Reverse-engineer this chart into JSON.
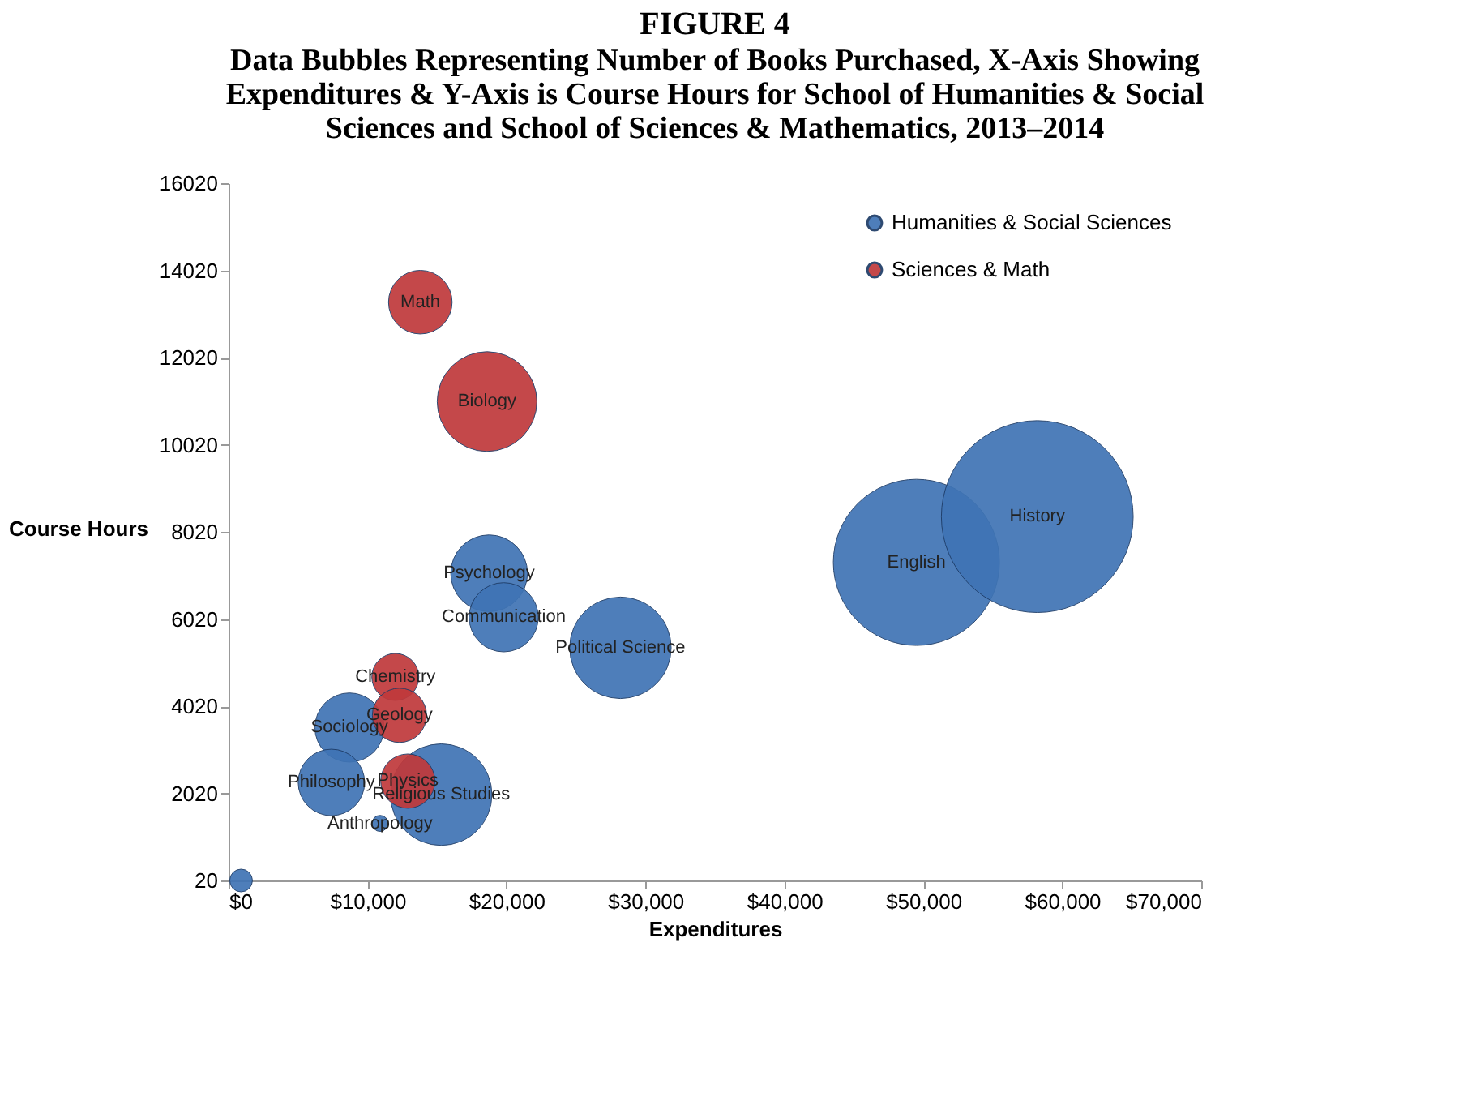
{
  "chart_data": {
    "type": "bubble",
    "title": "FIGURE 4",
    "subtitle": "Data Bubbles Representing Number of Books Purchased, X-Axis Showing Expenditures & Y-Axis is Course Hours for School of Humanities & Social Sciences and School of Sciences & Mathematics, 2013–2014",
    "xlabel": "Expenditures",
    "ylabel": "Course Hours",
    "xlim": [
      0,
      70000
    ],
    "xticks": [
      {
        "value": 0,
        "label": "$0"
      },
      {
        "value": 10000,
        "label": "$10,000"
      },
      {
        "value": 20000,
        "label": "$20,000"
      },
      {
        "value": 30000,
        "label": "$30,000"
      },
      {
        "value": 40000,
        "label": "$40,000"
      },
      {
        "value": 50000,
        "label": "$50,000"
      },
      {
        "value": 60000,
        "label": "$60,000"
      },
      {
        "value": 70000,
        "label": "$70,000"
      }
    ],
    "ylim": [
      20,
      16020
    ],
    "yticks": [
      20,
      2020,
      4020,
      6020,
      8020,
      10020,
      12020,
      14020,
      16020
    ],
    "series": [
      {
        "name": "Humanities & Social Sciences",
        "color": "#3f74b5",
        "x": [
          18750,
          19800,
          28200,
          49500,
          58200,
          8700,
          7400,
          15300,
          10900,
          900
        ],
        "values": [
          7070,
          6060,
          5360,
          7320,
          8370,
          3530,
          2270,
          1990,
          1330,
          20
        ],
        "sizes": [
          0.16,
          0.13,
          0.28,
          0.75,
          1,
          0.13,
          0.12,
          0.28,
          0.007,
          0.014
        ]
      },
      {
        "name": "Sciences & Math",
        "color": "#c0393b",
        "x": [
          13800,
          18600,
          12000,
          12300,
          12900
        ],
        "values": [
          13290,
          11010,
          4690,
          3810,
          2300
        ],
        "sizes": [
          0.11,
          0.27,
          0.06,
          0.08,
          0.08
        ]
      }
    ],
    "annotations": [
      {
        "text": "Math",
        "x": 13800,
        "y": 13290
      },
      {
        "text": "Biology",
        "x": 18600,
        "y": 11010
      },
      {
        "text": "Psychology",
        "x": 18750,
        "y": 7070
      },
      {
        "text": "Communication",
        "x": 19800,
        "y": 6060
      },
      {
        "text": "Political Science",
        "x": 28200,
        "y": 5360
      },
      {
        "text": "English",
        "x": 49500,
        "y": 7320
      },
      {
        "text": "History",
        "x": 58200,
        "y": 8370
      },
      {
        "text": "Chemistry",
        "x": 12000,
        "y": 4690
      },
      {
        "text": "Geology",
        "x": 12300,
        "y": 3810
      },
      {
        "text": "Sociology",
        "x": 8700,
        "y": 3530
      },
      {
        "text": "Philosophy",
        "x": 7400,
        "y": 2270
      },
      {
        "text": "Religious Studies",
        "x": 15300,
        "y": 1990
      },
      {
        "text": "Physics",
        "x": 12900,
        "y": 2300
      },
      {
        "text": "Anthropology",
        "x": 10900,
        "y": 1330
      }
    ],
    "legend": "top right",
    "grid": false,
    "marker": "circle"
  }
}
